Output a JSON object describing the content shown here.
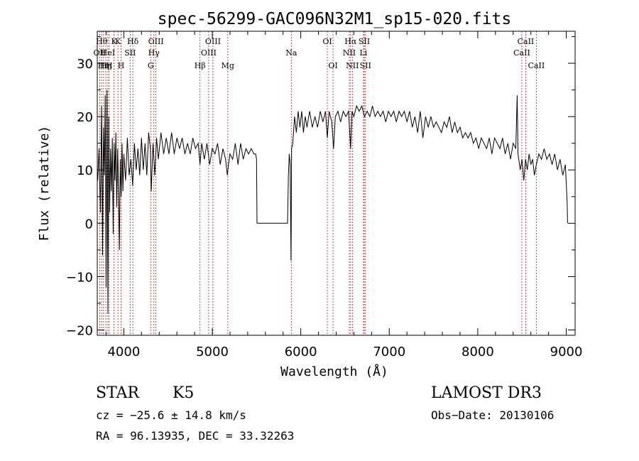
{
  "chart_data": {
    "type": "line",
    "title": "spec-56299-GAC096N32M1_sp15-020.fits",
    "xlabel": "Wavelength (Å)",
    "ylabel": "Flux (relative)",
    "xlim": [
      3700,
      9100
    ],
    "ylim": [
      -21,
      36
    ],
    "xticks": [
      4000,
      5000,
      6000,
      7000,
      8000,
      9000
    ],
    "yticks": [
      -20,
      -10,
      0,
      10,
      20,
      30
    ],
    "grid": false,
    "series": [
      {
        "points": [
          [
            3705,
            8
          ],
          [
            3720,
            14
          ],
          [
            3735,
            2
          ],
          [
            3750,
            22
          ],
          [
            3760,
            -6
          ],
          [
            3770,
            18
          ],
          [
            3780,
            9
          ],
          [
            3790,
            24
          ],
          [
            3800,
            -12
          ],
          [
            3810,
            25
          ],
          [
            3820,
            -17
          ],
          [
            3830,
            20
          ],
          [
            3840,
            2
          ],
          [
            3850,
            14
          ],
          [
            3860,
            6
          ],
          [
            3870,
            16
          ],
          [
            3880,
            -2
          ],
          [
            3890,
            15
          ],
          [
            3900,
            8
          ],
          [
            3910,
            17
          ],
          [
            3920,
            3
          ],
          [
            3930,
            14
          ],
          [
            3940,
            7
          ],
          [
            3950,
            -5
          ],
          [
            3960,
            12
          ],
          [
            3970,
            5
          ],
          [
            3980,
            15
          ],
          [
            3990,
            6
          ],
          [
            4000,
            13
          ],
          [
            4020,
            8
          ],
          [
            4040,
            16
          ],
          [
            4060,
            9
          ],
          [
            4080,
            12
          ],
          [
            4100,
            7
          ],
          [
            4120,
            15
          ],
          [
            4140,
            10
          ],
          [
            4160,
            14
          ],
          [
            4180,
            9
          ],
          [
            4200,
            16
          ],
          [
            4220,
            10
          ],
          [
            4240,
            15
          ],
          [
            4260,
            9
          ],
          [
            4280,
            17
          ],
          [
            4300,
            14
          ],
          [
            4310,
            6
          ],
          [
            4330,
            15
          ],
          [
            4350,
            9
          ],
          [
            4370,
            16
          ],
          [
            4390,
            12
          ],
          [
            4420,
            17
          ],
          [
            4450,
            13
          ],
          [
            4480,
            16
          ],
          [
            4510,
            13
          ],
          [
            4540,
            17
          ],
          [
            4570,
            13
          ],
          [
            4600,
            16
          ],
          [
            4630,
            14
          ],
          [
            4660,
            16
          ],
          [
            4690,
            13
          ],
          [
            4720,
            15
          ],
          [
            4750,
            13
          ],
          [
            4780,
            16
          ],
          [
            4810,
            14
          ],
          [
            4840,
            15
          ],
          [
            4861,
            11
          ],
          [
            4880,
            15
          ],
          [
            4910,
            12
          ],
          [
            4940,
            15
          ],
          [
            4970,
            11
          ],
          [
            5000,
            14
          ],
          [
            5030,
            13
          ],
          [
            5060,
            15
          ],
          [
            5090,
            11
          ],
          [
            5120,
            14
          ],
          [
            5150,
            12
          ],
          [
            5170,
            9
          ],
          [
            5183,
            11
          ],
          [
            5200,
            13
          ],
          [
            5230,
            12
          ],
          [
            5260,
            15
          ],
          [
            5290,
            11
          ],
          [
            5320,
            15
          ],
          [
            5350,
            12
          ],
          [
            5380,
            14
          ],
          [
            5410,
            13
          ],
          [
            5440,
            14
          ],
          [
            5470,
            13
          ],
          [
            5490,
            13
          ],
          [
            5500,
            12
          ],
          [
            5505,
            0
          ],
          [
            5850,
            0
          ],
          [
            5860,
            9
          ],
          [
            5870,
            13
          ],
          [
            5880,
            11
          ],
          [
            5890,
            -7
          ],
          [
            5896,
            14
          ],
          [
            5910,
            15
          ],
          [
            5930,
            20
          ],
          [
            5950,
            17
          ],
          [
            5970,
            21
          ],
          [
            5990,
            18
          ],
          [
            6010,
            21
          ],
          [
            6030,
            17
          ],
          [
            6050,
            20
          ],
          [
            6070,
            18
          ],
          [
            6100,
            21
          ],
          [
            6130,
            18
          ],
          [
            6160,
            20
          ],
          [
            6190,
            18
          ],
          [
            6220,
            21
          ],
          [
            6250,
            19
          ],
          [
            6280,
            21
          ],
          [
            6300,
            16
          ],
          [
            6320,
            21
          ],
          [
            6350,
            19
          ],
          [
            6370,
            14
          ],
          [
            6390,
            20
          ],
          [
            6420,
            21
          ],
          [
            6450,
            19
          ],
          [
            6480,
            21
          ],
          [
            6510,
            20
          ],
          [
            6540,
            21
          ],
          [
            6563,
            14
          ],
          [
            6580,
            21
          ],
          [
            6600,
            20
          ],
          [
            6630,
            22
          ],
          [
            6660,
            21
          ],
          [
            6690,
            22
          ],
          [
            6720,
            20
          ],
          [
            6750,
            21
          ],
          [
            6780,
            20
          ],
          [
            6810,
            22
          ],
          [
            6840,
            20
          ],
          [
            6870,
            21
          ],
          [
            6900,
            20
          ],
          [
            6930,
            21
          ],
          [
            6960,
            19
          ],
          [
            6990,
            21
          ],
          [
            7020,
            20
          ],
          [
            7050,
            21
          ],
          [
            7080,
            19
          ],
          [
            7110,
            21
          ],
          [
            7140,
            20
          ],
          [
            7170,
            21
          ],
          [
            7200,
            19
          ],
          [
            7230,
            21
          ],
          [
            7260,
            18
          ],
          [
            7290,
            20
          ],
          [
            7320,
            17
          ],
          [
            7350,
            21
          ],
          [
            7380,
            16
          ],
          [
            7410,
            20
          ],
          [
            7440,
            18
          ],
          [
            7470,
            20
          ],
          [
            7500,
            18
          ],
          [
            7530,
            19
          ],
          [
            7560,
            18
          ],
          [
            7590,
            17
          ],
          [
            7620,
            19
          ],
          [
            7650,
            18
          ],
          [
            7680,
            20
          ],
          [
            7710,
            17
          ],
          [
            7740,
            19
          ],
          [
            7770,
            17
          ],
          [
            7800,
            18
          ],
          [
            7830,
            16
          ],
          [
            7860,
            17
          ],
          [
            7890,
            16
          ],
          [
            7920,
            17
          ],
          [
            7950,
            15
          ],
          [
            7980,
            16
          ],
          [
            8010,
            14
          ],
          [
            8040,
            16
          ],
          [
            8070,
            15
          ],
          [
            8100,
            14
          ],
          [
            8130,
            16
          ],
          [
            8160,
            13
          ],
          [
            8190,
            16
          ],
          [
            8220,
            15
          ],
          [
            8250,
            14
          ],
          [
            8280,
            16
          ],
          [
            8310,
            13
          ],
          [
            8340,
            15
          ],
          [
            8370,
            12
          ],
          [
            8400,
            15
          ],
          [
            8430,
            14
          ],
          [
            8445,
            24
          ],
          [
            8455,
            13
          ],
          [
            8480,
            10
          ],
          [
            8500,
            12
          ],
          [
            8520,
            8
          ],
          [
            8540,
            12
          ],
          [
            8560,
            10
          ],
          [
            8580,
            13
          ],
          [
            8600,
            11
          ],
          [
            8620,
            12
          ],
          [
            8640,
            9
          ],
          [
            8662,
            11
          ],
          [
            8690,
            13
          ],
          [
            8720,
            12
          ],
          [
            8750,
            14
          ],
          [
            8780,
            12
          ],
          [
            8810,
            13
          ],
          [
            8840,
            11
          ],
          [
            8870,
            13
          ],
          [
            8900,
            10
          ],
          [
            8930,
            12
          ],
          [
            8960,
            9
          ],
          [
            8990,
            11
          ],
          [
            9010,
            4
          ],
          [
            9015,
            0
          ]
        ]
      }
    ],
    "lines": [
      {
        "x": 3727,
        "row": 2,
        "label": "OII"
      },
      {
        "x": 3750,
        "row": 1,
        "label": "Hθ"
      },
      {
        "x": 3771,
        "row": 3,
        "label": "Hη"
      },
      {
        "x": 3797,
        "row": 3,
        "label": "Hη"
      },
      {
        "x": 3820,
        "row": 2,
        "label": "HeI"
      },
      {
        "x": 3835,
        "row": 3,
        "label": "H"
      },
      {
        "x": 3889,
        "row": 1,
        "label": "K"
      },
      {
        "x": 3934,
        "row": 1,
        "label": "K"
      },
      {
        "x": 3969,
        "row": 3,
        "label": "H"
      },
      {
        "x": 4072,
        "row": 2,
        "label": "SII"
      },
      {
        "x": 4102,
        "row": 1,
        "label": "Hδ"
      },
      {
        "x": 4304,
        "row": 3,
        "label": "G"
      },
      {
        "x": 4340,
        "row": 2,
        "label": "Hγ"
      },
      {
        "x": 4363,
        "row": 1,
        "label": "OIII"
      },
      {
        "x": 4861,
        "row": 3,
        "label": "Hβ"
      },
      {
        "x": 4959,
        "row": 2,
        "label": "OIII"
      },
      {
        "x": 5007,
        "row": 1,
        "label": "OIII"
      },
      {
        "x": 5175,
        "row": 3,
        "label": "Mg"
      },
      {
        "x": 5893,
        "row": 2,
        "label": "Na"
      },
      {
        "x": 6300,
        "row": 1,
        "label": "OI"
      },
      {
        "x": 6364,
        "row": 3,
        "label": "OI"
      },
      {
        "x": 6548,
        "row": 2,
        "label": "NII"
      },
      {
        "x": 6563,
        "row": 1,
        "label": "Hα"
      },
      {
        "x": 6583,
        "row": 3,
        "label": "NII"
      },
      {
        "x": 6708,
        "row": 2,
        "label": "Li"
      },
      {
        "x": 6717,
        "row": 1,
        "label": "SII"
      },
      {
        "x": 6731,
        "row": 3,
        "label": "SII"
      },
      {
        "x": 8498,
        "row": 2,
        "label": "CaII"
      },
      {
        "x": 8542,
        "row": 1,
        "label": "CaII"
      },
      {
        "x": 8662,
        "row": 3,
        "label": "CaII"
      }
    ]
  },
  "info": {
    "class": "STAR",
    "subclass": "K5",
    "survey": "LAMOST DR3",
    "cz": "cz = −25.6 ± 14.8 km/s",
    "obs_date": "Obs−Date: 20130106",
    "coords": "RA =  96.13935, DEC =  33.32263"
  },
  "colors": {
    "spectrum": "#000000",
    "line_markers": "#b22222",
    "axes": "#000000"
  }
}
